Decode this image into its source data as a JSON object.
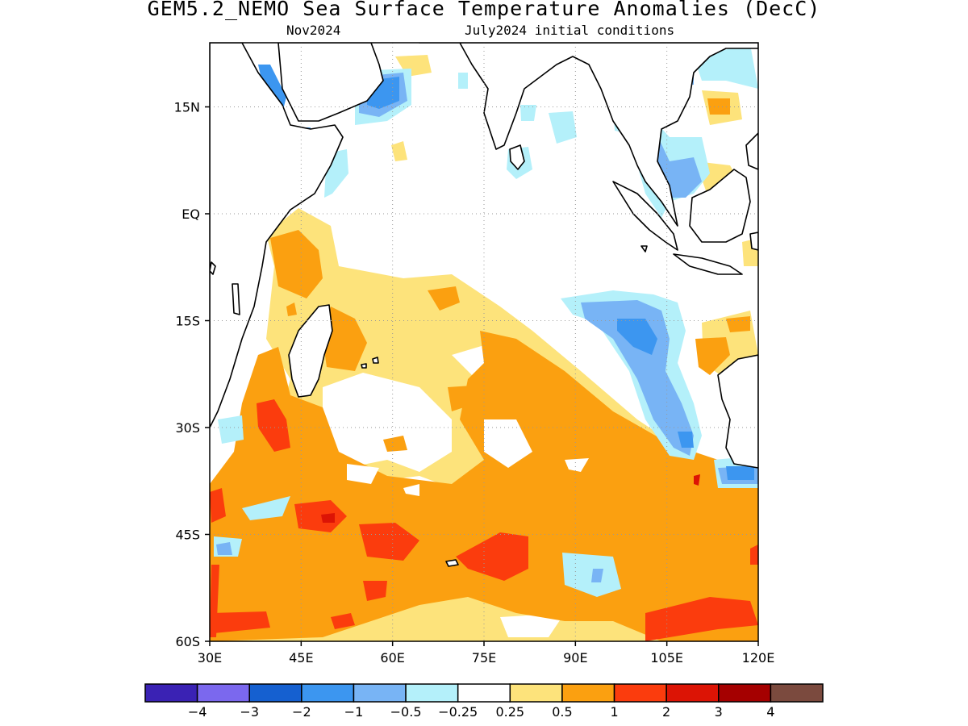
{
  "title": "GEM5.2_NEMO Sea Surface Temperature Anomalies (DecC)",
  "subtitle_left": "Nov2024",
  "subtitle_right": "July2024 initial conditions",
  "map": {
    "lon_range": [
      30,
      120
    ],
    "lat_range": [
      -60,
      24
    ],
    "x_ticks": [
      {
        "lon": 30,
        "label": "30E"
      },
      {
        "lon": 45,
        "label": "45E"
      },
      {
        "lon": 60,
        "label": "60E"
      },
      {
        "lon": 75,
        "label": "75E"
      },
      {
        "lon": 90,
        "label": "90E"
      },
      {
        "lon": 105,
        "label": "105E"
      },
      {
        "lon": 120,
        "label": "120E"
      }
    ],
    "y_ticks": [
      {
        "lat": 15,
        "label": "15N"
      },
      {
        "lat": 0,
        "label": "EQ"
      },
      {
        "lat": -15,
        "label": "15S"
      },
      {
        "lat": -30,
        "label": "30S"
      },
      {
        "lat": -45,
        "label": "45S"
      },
      {
        "lat": -60,
        "label": "60S"
      }
    ],
    "grid": "dotted"
  },
  "colorbar": {
    "colors": [
      "#3a22b4",
      "#7b68ee",
      "#1560d0",
      "#3c96f0",
      "#78b4f5",
      "#b4f0fa",
      "#ffffff",
      "#fde37b",
      "#fba010",
      "#fb3c0d",
      "#dc1405",
      "#a50000",
      "#7b4a3e"
    ],
    "labels": [
      "−4",
      "−3",
      "−2",
      "−1",
      "−0.5",
      "−0.25",
      "0.25",
      "0.5",
      "1",
      "2",
      "3",
      "4"
    ]
  }
}
